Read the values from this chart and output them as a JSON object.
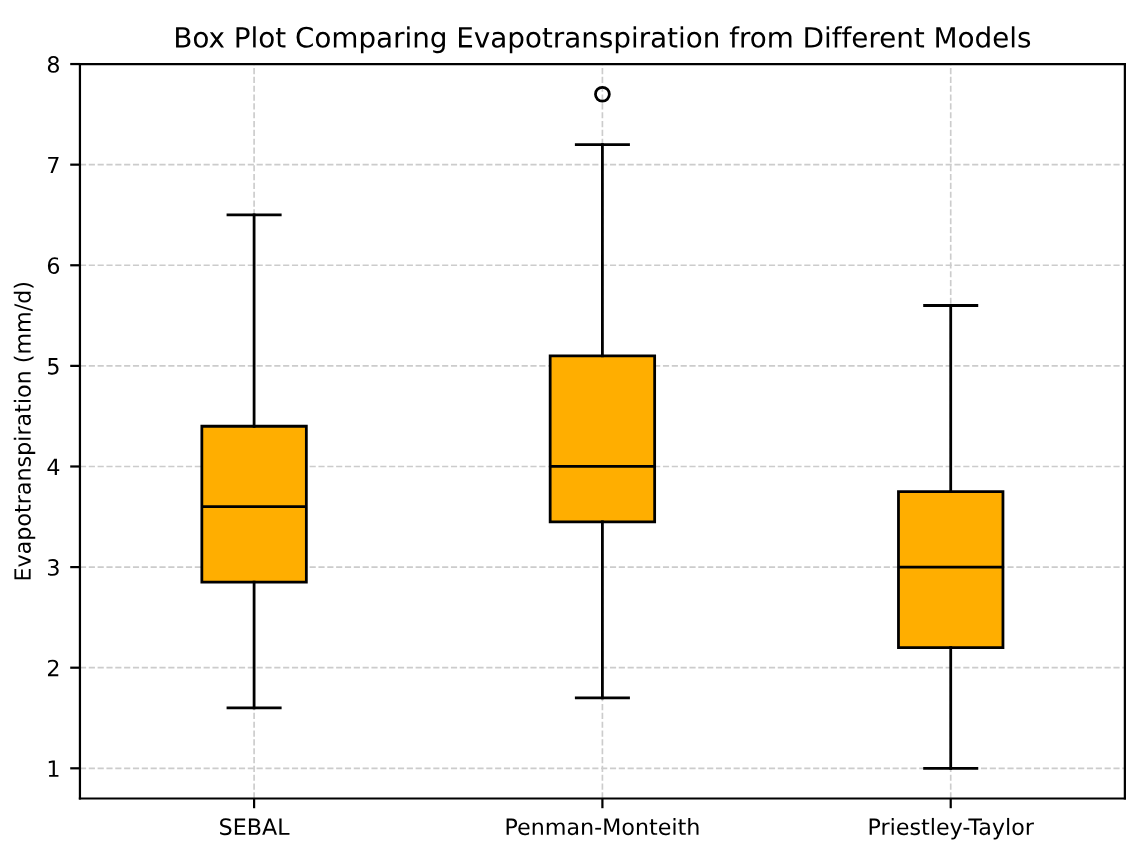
{
  "chart_data": {
    "type": "box",
    "title": "Box Plot Comparing Evapotranspiration from Different Models",
    "ylabel": "Evapotranspiration (mm/d)",
    "categories": [
      "SEBAL",
      "Penman-Monteith",
      "Priestley-Taylor"
    ],
    "boxes": [
      {
        "low": 1.6,
        "q1": 2.85,
        "median": 3.6,
        "q3": 4.4,
        "high": 6.5
      },
      {
        "low": 1.7,
        "q1": 3.45,
        "median": 4.0,
        "q3": 5.1,
        "high": 7.2,
        "outliers": [
          7.7
        ]
      },
      {
        "low": 1.0,
        "q1": 2.2,
        "median": 3.0,
        "q3": 3.75,
        "high": 5.6
      }
    ],
    "color": "#ffae00",
    "ylim": [
      0.7,
      8.0
    ],
    "yticks": [
      1,
      2,
      3,
      4,
      5,
      6,
      7,
      8
    ],
    "grid": true
  }
}
